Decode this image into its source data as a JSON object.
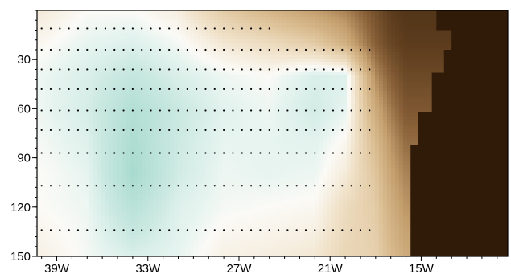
{
  "chart_data": {
    "type": "heatmap",
    "title": "",
    "xlabel": "",
    "ylabel": "",
    "x_ticks": [
      {
        "label": "39W",
        "value": -39
      },
      {
        "label": "33W",
        "value": -33
      },
      {
        "label": "27W",
        "value": -27
      },
      {
        "label": "21W",
        "value": -21
      },
      {
        "label": "15W",
        "value": -15
      }
    ],
    "y_ticks": [
      {
        "label": "30",
        "value": 30
      },
      {
        "label": "60",
        "value": 60
      },
      {
        "label": "90",
        "value": 90
      },
      {
        "label": "120",
        "value": 120
      },
      {
        "label": "150",
        "value": 150
      }
    ],
    "xlim": [
      -40.3,
      -9.3
    ],
    "ylim": [
      150,
      0
    ],
    "y_inverted": true,
    "colors": {
      "deep_teal": "#a3d8cc",
      "light_teal": "#dff1ec",
      "neutral": "#fbfaf6",
      "light_tan": "#e6cda6",
      "tan": "#c49f6e",
      "brown": "#8a6139",
      "dark_brown": "#301b08"
    },
    "land_mask_top_edge": [
      {
        "x": -14.0,
        "y": 0
      },
      {
        "x": -13.0,
        "y": 12
      },
      {
        "x": -13.5,
        "y": 24
      },
      {
        "x": -14.3,
        "y": 38
      },
      {
        "x": -15.2,
        "y": 62
      },
      {
        "x": -15.7,
        "y": 82
      },
      {
        "x": -15.7,
        "y": 150
      }
    ],
    "sample_depths": [
      11,
      24,
      36,
      48,
      61,
      73,
      87,
      107,
      134
    ],
    "sample_lon_range": [
      -40,
      -17.9
    ],
    "sample_lon_spacing": 0.6,
    "field": {
      "lon": [
        -40,
        -37,
        -34,
        -31,
        -28,
        -25,
        -22,
        -20,
        -18,
        -17,
        -16
      ],
      "depth": [
        0,
        20,
        40,
        60,
        80,
        100,
        120,
        150
      ],
      "values": [
        [
          0.5,
          0.0,
          0.0,
          0.4,
          1.6,
          2.4,
          3.2,
          3.8,
          5.0,
          5.6,
          5.8
        ],
        [
          0.1,
          -0.3,
          -0.5,
          -0.1,
          0.6,
          1.0,
          1.6,
          2.6,
          4.6,
          5.3,
          5.6
        ],
        [
          -0.2,
          -0.6,
          -1.2,
          -0.6,
          -0.2,
          0.0,
          -0.6,
          -0.5,
          3.6,
          4.6,
          5.2
        ],
        [
          -0.2,
          -0.7,
          -1.8,
          -1.0,
          -0.4,
          -0.2,
          -0.8,
          -0.3,
          2.8,
          4.0,
          4.8
        ],
        [
          -0.1,
          -0.5,
          -2.0,
          -0.9,
          -0.3,
          -0.3,
          -0.4,
          0.1,
          2.2,
          3.4,
          4.3
        ],
        [
          0.0,
          -0.3,
          -2.2,
          -0.8,
          -0.2,
          -0.3,
          -0.2,
          0.5,
          1.8,
          3.0,
          3.8
        ],
        [
          0.0,
          -0.2,
          -1.6,
          -0.5,
          -0.1,
          0.0,
          0.1,
          1.0,
          1.6,
          2.6,
          3.4
        ],
        [
          0.3,
          -0.1,
          -0.6,
          -0.3,
          0.3,
          0.4,
          0.6,
          1.2,
          1.4,
          2.2,
          2.8
        ]
      ]
    },
    "color_scale": [
      {
        "v": -2.4,
        "c": "#a3d8cc"
      },
      {
        "v": -1.0,
        "c": "#c9e8e0"
      },
      {
        "v": -0.3,
        "c": "#e7f4f0"
      },
      {
        "v": 0.0,
        "c": "#fbfaf6"
      },
      {
        "v": 0.8,
        "c": "#f0e1c8"
      },
      {
        "v": 2.0,
        "c": "#dcc095"
      },
      {
        "v": 3.2,
        "c": "#c49f6e"
      },
      {
        "v": 4.5,
        "c": "#8a6139"
      },
      {
        "v": 6.0,
        "c": "#4a2e12"
      }
    ]
  }
}
